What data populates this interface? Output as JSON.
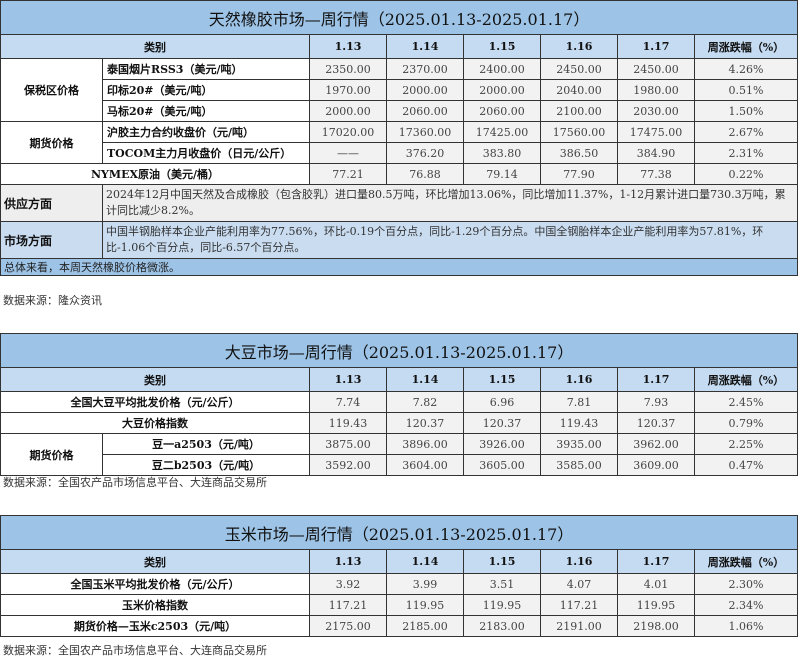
{
  "rubber": {
    "title": "天然橡胶市场—周行情（2025.01.13-2025.01.17）",
    "header": {
      "category": "类别",
      "dates": [
        "1.13",
        "1.14",
        "1.15",
        "1.16",
        "1.17"
      ],
      "change": "周涨跌幅（%）"
    },
    "groups": [
      {
        "label": "保税区价格",
        "rows": [
          {
            "name": "泰国烟片RSS3（美元/吨）",
            "values": [
              "2350.00",
              "2370.00",
              "2400.00",
              "2450.00",
              "2450.00"
            ],
            "change": "4.26%"
          },
          {
            "name": "印标20#（美元/吨）",
            "values": [
              "1970.00",
              "2000.00",
              "2000.00",
              "2040.00",
              "1980.00"
            ],
            "change": "0.51%"
          },
          {
            "name": "马标20#（美元/吨）",
            "values": [
              "2000.00",
              "2060.00",
              "2060.00",
              "2100.00",
              "2030.00"
            ],
            "change": "1.50%"
          }
        ]
      },
      {
        "label": "期货价格",
        "rows": [
          {
            "name": "沪胶主力合约收盘价（元/吨）",
            "values": [
              "17020.00",
              "17360.00",
              "17425.00",
              "17560.00",
              "17475.00"
            ],
            "change": "2.67%"
          },
          {
            "name": "TOCOM主力月收盘价（日元/公斤）",
            "values": [
              "——",
              "376.20",
              "383.80",
              "386.50",
              "384.90"
            ],
            "change": "2.31%"
          }
        ]
      }
    ],
    "nymex": {
      "name": "NYMEX原油（美元/桶）",
      "values": [
        "77.21",
        "76.88",
        "79.14",
        "77.90",
        "77.38"
      ],
      "change": "0.22%"
    },
    "supply": {
      "label": "供应方面",
      "text": "2024年12月中国天然及合成橡胶（包含胶乳）进口量80.5万吨，环比增加13.06%，同比增加11.37%，1-12月累计进口量730.3万吨，累计同比减少8.2%。"
    },
    "market": {
      "label": "市场方面",
      "text": "中国半钢胎样本企业产能利用率为77.56%，环比-0.19个百分点，同比-1.29个百分点。中国全钢胎样本企业产能利用率为57.81%，环比-1.06个百分点，同比-6.57个百分点。"
    },
    "summary": "总体来看，本周天然橡胶价格微涨。",
    "source": "数据来源：隆众资讯"
  },
  "soybean": {
    "title": "大豆市场—周行情（2025.01.13-2025.01.17）",
    "header": {
      "category": "类别",
      "dates": [
        "1.13",
        "1.14",
        "1.15",
        "1.16",
        "1.17"
      ],
      "change": "周涨跌幅（%）"
    },
    "rows": [
      {
        "name": "全国大豆平均批发价格（元/公斤）",
        "values": [
          "7.74",
          "7.82",
          "6.96",
          "7.81",
          "7.93"
        ],
        "change": "2.45%"
      },
      {
        "name": "大豆价格指数",
        "values": [
          "119.43",
          "120.37",
          "120.37",
          "119.43",
          "120.37"
        ],
        "change": "0.79%"
      }
    ],
    "futures": {
      "label": "期货价格",
      "rows": [
        {
          "name": "豆一a2503（元/吨）",
          "values": [
            "3875.00",
            "3896.00",
            "3926.00",
            "3935.00",
            "3962.00"
          ],
          "change": "2.25%"
        },
        {
          "name": "豆二b2503（元/吨）",
          "values": [
            "3592.00",
            "3604.00",
            "3605.00",
            "3585.00",
            "3609.00"
          ],
          "change": "0.47%"
        }
      ]
    },
    "source": "数据来源：全国农产品市场信息平台、大连商品交易所"
  },
  "corn": {
    "title": "玉米市场—周行情（2025.01.13-2025.01.17）",
    "header": {
      "category": "类别",
      "dates": [
        "1.13",
        "1.14",
        "1.15",
        "1.16",
        "1.17"
      ],
      "change": "周涨跌幅（%）"
    },
    "rows": [
      {
        "name": "全国玉米平均批发价格（元/公斤）",
        "values": [
          "3.92",
          "3.99",
          "3.51",
          "4.07",
          "4.01"
        ],
        "change": "2.30%"
      },
      {
        "name": "玉米价格指数",
        "values": [
          "117.21",
          "119.95",
          "119.95",
          "117.21",
          "119.95"
        ],
        "change": "2.34%"
      },
      {
        "name": "期货价格—玉米c2503（元/吨）",
        "values": [
          "2175.00",
          "2185.00",
          "2183.00",
          "2191.00",
          "2198.00"
        ],
        "change": "1.06%"
      }
    ],
    "source": "数据来源：全国农产品市场信息平台、大连商品交易所"
  }
}
